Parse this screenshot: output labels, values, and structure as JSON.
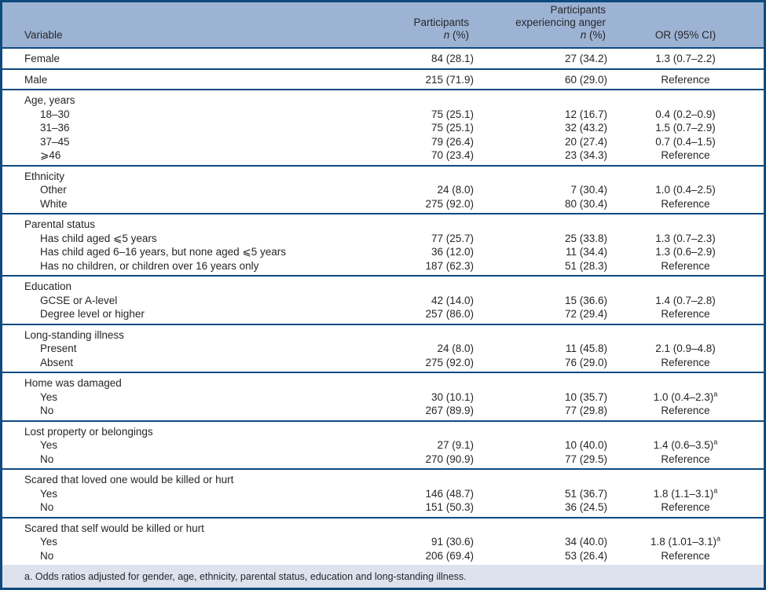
{
  "colors": {
    "border": "#0f4a7f",
    "header_bg": "#9db3d3",
    "footnote_bg": "#dde2ed",
    "text": "#26262b"
  },
  "table": {
    "header": {
      "variable": "Variable",
      "participants": {
        "line1": "Participants",
        "n": "n",
        "pct": " (%)"
      },
      "anger": {
        "line1": "Participants",
        "line2": "experiencing anger",
        "n": "n",
        "pct": " (%)"
      },
      "or": "OR (95% CI)"
    },
    "sections": [
      {
        "rows": [
          {
            "label": "Female",
            "n": "84 (28.1)",
            "anger": "27 (34.2)",
            "or": "1.3 (0.7–2.2)"
          }
        ]
      },
      {
        "rows": [
          {
            "label": "Male",
            "n": "215 (71.9)",
            "anger": "60 (29.0)",
            "or": "Reference"
          }
        ]
      },
      {
        "rows": [
          {
            "label": "Age, years",
            "group": true
          },
          {
            "label": "18–30",
            "indent": true,
            "n": "75 (25.1)",
            "anger": "12 (16.7)",
            "or": "0.4 (0.2–0.9)"
          },
          {
            "label": "31–36",
            "indent": true,
            "n": "75 (25.1)",
            "anger": "32 (43.2)",
            "or": "1.5 (0.7–2.9)"
          },
          {
            "label": "37–45",
            "indent": true,
            "n": "79 (26.4)",
            "anger": "20 (27.4)",
            "or": "0.7 (0.4–1.5)"
          },
          {
            "label": "⩾46",
            "indent": true,
            "n": "70 (23.4)",
            "anger": "23 (34.3)",
            "or": "Reference"
          }
        ]
      },
      {
        "rows": [
          {
            "label": "Ethnicity",
            "group": true
          },
          {
            "label": "Other",
            "indent": true,
            "n": "24 (8.0)",
            "anger": "7 (30.4)",
            "or": "1.0 (0.4–2.5)"
          },
          {
            "label": "White",
            "indent": true,
            "n": "275 (92.0)",
            "anger": "80 (30.4)",
            "or": "Reference"
          }
        ]
      },
      {
        "rows": [
          {
            "label": "Parental status",
            "group": true
          },
          {
            "label": "Has child aged ⩽5 years",
            "indent": true,
            "n": "77 (25.7)",
            "anger": "25 (33.8)",
            "or": "1.3 (0.7–2.3)"
          },
          {
            "label": "Has child aged 6–16 years, but none aged ⩽5 years",
            "indent": true,
            "n": "36 (12.0)",
            "anger": "11 (34.4)",
            "or": "1.3 (0.6–2.9)"
          },
          {
            "label": "Has no children, or children over 16 years only",
            "indent": true,
            "n": "187 (62.3)",
            "anger": "51 (28.3)",
            "or": "Reference"
          }
        ]
      },
      {
        "rows": [
          {
            "label": "Education",
            "group": true
          },
          {
            "label": "GCSE or A-level",
            "indent": true,
            "n": "42 (14.0)",
            "anger": "15 (36.6)",
            "or": "1.4 (0.7–2.8)"
          },
          {
            "label": "Degree level or higher",
            "indent": true,
            "n": "257 (86.0)",
            "anger": "72 (29.4)",
            "or": "Reference"
          }
        ]
      },
      {
        "rows": [
          {
            "label": "Long-standing illness",
            "group": true
          },
          {
            "label": "Present",
            "indent": true,
            "n": "24 (8.0)",
            "anger": "11 (45.8)",
            "or": "2.1 (0.9–4.8)"
          },
          {
            "label": "Absent",
            "indent": true,
            "n": "275 (92.0)",
            "anger": "76 (29.0)",
            "or": "Reference"
          }
        ]
      },
      {
        "rows": [
          {
            "label": "Home was damaged",
            "group": true
          },
          {
            "label": "Yes",
            "indent": true,
            "n": "30 (10.1)",
            "anger": "10 (35.7)",
            "or": "1.0 (0.4–2.3)",
            "sup": "a"
          },
          {
            "label": "No",
            "indent": true,
            "n": "267 (89.9)",
            "anger": "77 (29.8)",
            "or": "Reference"
          }
        ]
      },
      {
        "rows": [
          {
            "label": "Lost property or belongings",
            "group": true
          },
          {
            "label": "Yes",
            "indent": true,
            "n": "27 (9.1)",
            "anger": "10 (40.0)",
            "or": "1.4 (0.6–3.5)",
            "sup": "a"
          },
          {
            "label": "No",
            "indent": true,
            "n": "270 (90.9)",
            "anger": "77 (29.5)",
            "or": "Reference"
          }
        ]
      },
      {
        "rows": [
          {
            "label": "Scared that loved one would be killed or hurt",
            "group": true
          },
          {
            "label": "Yes",
            "indent": true,
            "n": "146 (48.7)",
            "anger": "51 (36.7)",
            "or": "1.8 (1.1–3.1)",
            "sup": "a"
          },
          {
            "label": "No",
            "indent": true,
            "n": "151 (50.3)",
            "anger": "36 (24.5)",
            "or": "Reference"
          }
        ]
      },
      {
        "rows": [
          {
            "label": "Scared that self would be killed or hurt",
            "group": true
          },
          {
            "label": "Yes",
            "indent": true,
            "n": "91 (30.6)",
            "anger": "34 (40.0)",
            "or": "1.8 (1.01–3.1)",
            "sup": "a"
          },
          {
            "label": "No",
            "indent": true,
            "n": "206 (69.4)",
            "anger": "53 (26.4)",
            "or": "Reference"
          }
        ]
      }
    ],
    "footnote": "a. Odds ratios adjusted for gender, age, ethnicity, parental status, education and long-standing illness."
  }
}
